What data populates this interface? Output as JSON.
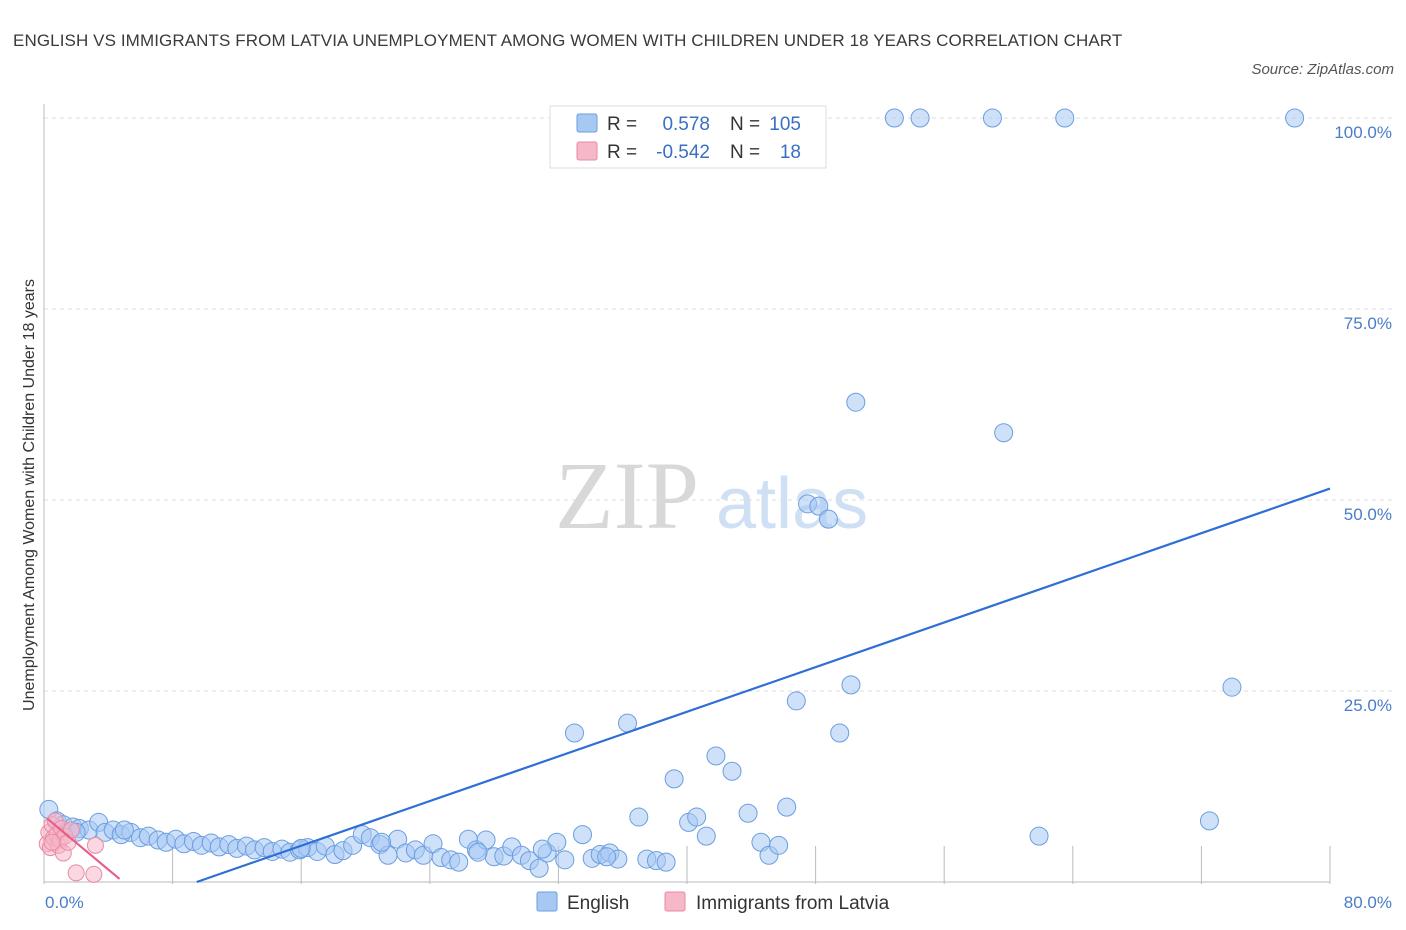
{
  "title": "ENGLISH VS IMMIGRANTS FROM LATVIA UNEMPLOYMENT AMONG WOMEN WITH CHILDREN UNDER 18 YEARS CORRELATION CHART",
  "source": "Source: ZipAtlas.com",
  "watermark": {
    "zip": "ZIP",
    "atlas": "atlas"
  },
  "legend_top": {
    "r_label": "R =",
    "n_label": "N =",
    "rows": [
      {
        "r": "0.578",
        "n": "105",
        "color": "#a8c8f4"
      },
      {
        "r": "-0.542",
        "n": "18",
        "color": "#f6b7c8"
      }
    ]
  },
  "chart_data": {
    "type": "scatter",
    "title": "English vs Immigrants from Latvia Unemployment Among Women with Children Under 18 years Correlation Chart",
    "xlabel": "",
    "ylabel": "Unemployment Among Women with Children Under 18 years",
    "xlim": [
      0,
      80
    ],
    "ylim": [
      0,
      100
    ],
    "x_tick_labels": [
      "0.0%",
      "80.0%"
    ],
    "y_tick_labels": [
      "25.0%",
      "50.0%",
      "75.0%",
      "100.0%"
    ],
    "y_ticks": [
      25,
      50,
      75,
      100
    ],
    "grid": true,
    "legend": [
      "English",
      "Immigrants from Latvia"
    ],
    "series": [
      {
        "name": "English",
        "color": "#a8c8f4",
        "stroke": "#6a9ee0",
        "trend": {
          "x": [
            9.5,
            80
          ],
          "y": [
            0,
            51.5
          ],
          "color": "#2e6fd6"
        },
        "points": [
          [
            0.3,
            9.5
          ],
          [
            0.8,
            8.0
          ],
          [
            1.2,
            7.5
          ],
          [
            1.8,
            7.2
          ],
          [
            2.2,
            7.0
          ],
          [
            2.8,
            6.8
          ],
          [
            3.4,
            7.8
          ],
          [
            3.8,
            6.5
          ],
          [
            4.3,
            6.8
          ],
          [
            4.8,
            6.2
          ],
          [
            5.4,
            6.5
          ],
          [
            6.0,
            5.8
          ],
          [
            6.5,
            6.0
          ],
          [
            7.1,
            5.5
          ],
          [
            7.6,
            5.2
          ],
          [
            8.2,
            5.6
          ],
          [
            8.7,
            5.0
          ],
          [
            9.3,
            5.3
          ],
          [
            9.8,
            4.8
          ],
          [
            10.4,
            5.1
          ],
          [
            10.9,
            4.6
          ],
          [
            11.5,
            4.9
          ],
          [
            12.0,
            4.4
          ],
          [
            12.6,
            4.7
          ],
          [
            13.1,
            4.2
          ],
          [
            13.7,
            4.5
          ],
          [
            14.2,
            4.0
          ],
          [
            14.8,
            4.3
          ],
          [
            15.3,
            3.9
          ],
          [
            15.9,
            4.2
          ],
          [
            16.4,
            4.5
          ],
          [
            17.0,
            4.0
          ],
          [
            17.5,
            4.7
          ],
          [
            18.1,
            3.6
          ],
          [
            18.6,
            4.1
          ],
          [
            19.2,
            4.8
          ],
          [
            19.8,
            6.2
          ],
          [
            20.3,
            5.8
          ],
          [
            20.9,
            4.9
          ],
          [
            21.4,
            3.5
          ],
          [
            22.0,
            5.6
          ],
          [
            22.5,
            3.8
          ],
          [
            23.1,
            4.2
          ],
          [
            23.6,
            3.5
          ],
          [
            24.2,
            5.0
          ],
          [
            24.7,
            3.2
          ],
          [
            25.3,
            2.9
          ],
          [
            25.8,
            2.6
          ],
          [
            26.4,
            5.6
          ],
          [
            26.9,
            4.2
          ],
          [
            27.5,
            5.5
          ],
          [
            28.0,
            3.3
          ],
          [
            28.6,
            3.4
          ],
          [
            29.1,
            4.6
          ],
          [
            29.7,
            3.5
          ],
          [
            30.2,
            2.8
          ],
          [
            30.8,
            1.8
          ],
          [
            31.3,
            3.8
          ],
          [
            31.9,
            5.2
          ],
          [
            32.4,
            2.9
          ],
          [
            33.0,
            19.5
          ],
          [
            33.5,
            6.2
          ],
          [
            34.1,
            3.1
          ],
          [
            34.6,
            3.6
          ],
          [
            35.2,
            3.8
          ],
          [
            35.7,
            3.0
          ],
          [
            36.3,
            20.8
          ],
          [
            37.0,
            8.5
          ],
          [
            37.5,
            3.0
          ],
          [
            38.1,
            2.8
          ],
          [
            38.7,
            2.6
          ],
          [
            39.2,
            13.5
          ],
          [
            40.1,
            7.8
          ],
          [
            40.6,
            8.5
          ],
          [
            41.2,
            6.0
          ],
          [
            41.8,
            16.5
          ],
          [
            42.8,
            14.5
          ],
          [
            43.8,
            9.0
          ],
          [
            44.6,
            5.2
          ],
          [
            45.1,
            3.5
          ],
          [
            45.7,
            4.8
          ],
          [
            46.2,
            9.8
          ],
          [
            46.8,
            23.7
          ],
          [
            47.5,
            49.5
          ],
          [
            48.2,
            49.2
          ],
          [
            48.8,
            47.5
          ],
          [
            49.5,
            19.5
          ],
          [
            50.2,
            25.8
          ],
          [
            50.5,
            62.8
          ],
          [
            52.9,
            100.0
          ],
          [
            54.5,
            100.0
          ],
          [
            59.0,
            100.0
          ],
          [
            59.7,
            58.8
          ],
          [
            63.5,
            100.0
          ],
          [
            61.9,
            6.0
          ],
          [
            72.5,
            8.0
          ],
          [
            73.9,
            25.5
          ],
          [
            77.8,
            100.0
          ],
          [
            2.0,
            6.5
          ],
          [
            5.0,
            6.8
          ],
          [
            16.0,
            4.4
          ],
          [
            21.0,
            5.2
          ],
          [
            27.0,
            3.9
          ],
          [
            31.0,
            4.3
          ],
          [
            35.0,
            3.3
          ]
        ]
      },
      {
        "name": "Immigrants from Latvia",
        "color": "#f6b7c8",
        "stroke": "#ea8aa5",
        "trend": {
          "x": [
            0.2,
            4.7
          ],
          "y": [
            8.3,
            0.4
          ],
          "color": "#e85d8a"
        },
        "points": [
          [
            0.2,
            5.0
          ],
          [
            0.3,
            6.5
          ],
          [
            0.4,
            4.5
          ],
          [
            0.5,
            7.5
          ],
          [
            0.6,
            5.8
          ],
          [
            0.7,
            8.0
          ],
          [
            0.8,
            6.2
          ],
          [
            0.9,
            4.8
          ],
          [
            1.0,
            5.5
          ],
          [
            1.1,
            7.0
          ],
          [
            1.2,
            3.8
          ],
          [
            1.3,
            6.0
          ],
          [
            1.5,
            5.2
          ],
          [
            1.7,
            6.8
          ],
          [
            2.0,
            1.2
          ],
          [
            3.1,
            1.0
          ],
          [
            3.2,
            4.8
          ],
          [
            0.5,
            5.2
          ]
        ]
      }
    ]
  },
  "legend_bottom": [
    {
      "label": "English",
      "color": "#a8c8f4"
    },
    {
      "label": "Immigrants from Latvia",
      "color": "#f6b7c8"
    }
  ]
}
